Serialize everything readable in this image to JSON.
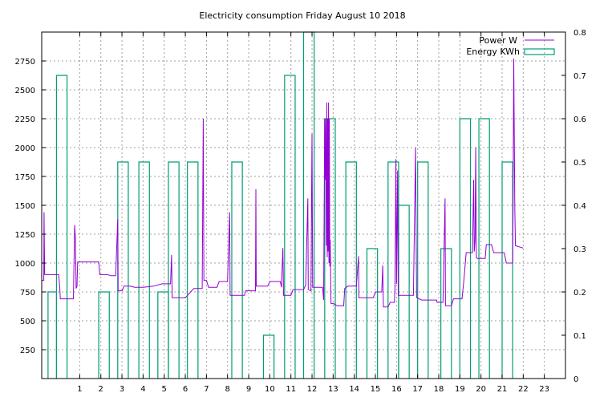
{
  "chart_data": {
    "type": "line",
    "title": "Electricity consumption Friday August 10 2018",
    "x_range": [
      -0.8,
      24
    ],
    "x_ticks": [
      1,
      2,
      3,
      4,
      5,
      6,
      7,
      8,
      9,
      10,
      11,
      12,
      13,
      14,
      15,
      16,
      17,
      18,
      19,
      20,
      21,
      22,
      23
    ],
    "y_left_range": [
      0,
      3000
    ],
    "y_left_ticks": [
      250,
      500,
      750,
      1000,
      1250,
      1500,
      1750,
      2000,
      2250,
      2500,
      2750
    ],
    "y_right_range": [
      0,
      0.8
    ],
    "y_right_ticks": [
      "0",
      "0.1",
      "0.2",
      "0.3",
      "0.4",
      "0.5",
      "0.6",
      "0.7",
      "0.8"
    ],
    "grid": true,
    "legend_position": "top-right",
    "colors": {
      "power": "#9400d3",
      "energy": "#009e73"
    },
    "series": [
      {
        "name": "Power W",
        "style": "line",
        "axis": "left",
        "points": [
          [
            -0.8,
            850
          ],
          [
            -0.7,
            850
          ],
          [
            -0.69,
            1440
          ],
          [
            -0.66,
            900
          ],
          [
            -0.4,
            900
          ],
          [
            0,
            900
          ],
          [
            0.05,
            800
          ],
          [
            0.08,
            690
          ],
          [
            0.4,
            690
          ],
          [
            0.7,
            690
          ],
          [
            0.74,
            1100
          ],
          [
            0.76,
            1330
          ],
          [
            0.8,
            1200
          ],
          [
            0.83,
            780
          ],
          [
            0.87,
            800
          ],
          [
            0.9,
            1010
          ],
          [
            1.1,
            1010
          ],
          [
            1.5,
            1010
          ],
          [
            1.9,
            1010
          ],
          [
            1.95,
            900
          ],
          [
            2.3,
            900
          ],
          [
            2.5,
            890
          ],
          [
            2.7,
            890
          ],
          [
            2.8,
            1380
          ],
          [
            2.82,
            760
          ],
          [
            3.0,
            760
          ],
          [
            3.1,
            800
          ],
          [
            3.4,
            800
          ],
          [
            3.6,
            790
          ],
          [
            4.0,
            790
          ],
          [
            4.5,
            800
          ],
          [
            4.9,
            820
          ],
          [
            5.3,
            820
          ],
          [
            5.35,
            1070
          ],
          [
            5.38,
            700
          ],
          [
            6.0,
            700
          ],
          [
            6.4,
            780
          ],
          [
            6.8,
            780
          ],
          [
            6.85,
            2250
          ],
          [
            6.88,
            850
          ],
          [
            7.0,
            850
          ],
          [
            7.1,
            790
          ],
          [
            7.5,
            790
          ],
          [
            7.6,
            840
          ],
          [
            8.0,
            840
          ],
          [
            8.1,
            1440
          ],
          [
            8.12,
            720
          ],
          [
            8.8,
            720
          ],
          [
            8.85,
            760
          ],
          [
            9.1,
            760
          ],
          [
            9.32,
            760
          ],
          [
            9.34,
            1640
          ],
          [
            9.36,
            800
          ],
          [
            9.9,
            800
          ],
          [
            10.0,
            840
          ],
          [
            10.5,
            840
          ],
          [
            10.55,
            790
          ],
          [
            10.62,
            1130
          ],
          [
            10.65,
            720
          ],
          [
            11.0,
            720
          ],
          [
            11.1,
            770
          ],
          [
            11.6,
            770
          ],
          [
            11.7,
            810
          ],
          [
            11.8,
            1560
          ],
          [
            11.82,
            770
          ],
          [
            11.95,
            760
          ],
          [
            12.0,
            2120
          ],
          [
            12.03,
            790
          ],
          [
            12.2,
            790
          ],
          [
            12.5,
            790
          ],
          [
            12.55,
            680
          ],
          [
            12.6,
            2250
          ],
          [
            12.62,
            1720
          ],
          [
            12.65,
            2250
          ],
          [
            12.68,
            1150
          ],
          [
            12.7,
            2390
          ],
          [
            12.72,
            1050
          ],
          [
            12.74,
            2250
          ],
          [
            12.76,
            1100
          ],
          [
            12.78,
            2390
          ],
          [
            12.8,
            1000
          ],
          [
            12.82,
            2250
          ],
          [
            12.84,
            970
          ],
          [
            12.86,
            1200
          ],
          [
            12.9,
            650
          ],
          [
            13.0,
            650
          ],
          [
            13.2,
            630
          ],
          [
            13.5,
            630
          ],
          [
            13.55,
            780
          ],
          [
            13.7,
            800
          ],
          [
            14.1,
            800
          ],
          [
            14.2,
            1060
          ],
          [
            14.22,
            700
          ],
          [
            14.6,
            700
          ],
          [
            14.9,
            700
          ],
          [
            15.0,
            750
          ],
          [
            15.3,
            750
          ],
          [
            15.35,
            980
          ],
          [
            15.38,
            620
          ],
          [
            15.6,
            620
          ],
          [
            15.7,
            660
          ],
          [
            15.9,
            660
          ],
          [
            15.93,
            810
          ],
          [
            15.97,
            1900
          ],
          [
            16.0,
            820
          ],
          [
            16.05,
            1800
          ],
          [
            16.08,
            720
          ],
          [
            16.6,
            720
          ],
          [
            16.8,
            720
          ],
          [
            16.9,
            2000
          ],
          [
            16.95,
            700
          ],
          [
            17.2,
            680
          ],
          [
            17.9,
            680
          ],
          [
            17.92,
            660
          ],
          [
            18.2,
            660
          ],
          [
            18.3,
            1560
          ],
          [
            18.32,
            630
          ],
          [
            18.6,
            630
          ],
          [
            18.7,
            690
          ],
          [
            19.1,
            690
          ],
          [
            19.2,
            870
          ],
          [
            19.3,
            1090
          ],
          [
            19.6,
            1090
          ],
          [
            19.65,
            1720
          ],
          [
            19.68,
            1100
          ],
          [
            19.72,
            1200
          ],
          [
            19.75,
            2000
          ],
          [
            19.78,
            1050
          ],
          [
            19.82,
            1040
          ],
          [
            20.2,
            1040
          ],
          [
            20.25,
            1160
          ],
          [
            20.5,
            1160
          ],
          [
            20.6,
            1090
          ],
          [
            21.1,
            1090
          ],
          [
            21.2,
            1000
          ],
          [
            21.5,
            1000
          ],
          [
            21.52,
            1500
          ],
          [
            21.55,
            2770
          ],
          [
            21.6,
            1500
          ],
          [
            21.63,
            1150
          ],
          [
            22.0,
            1130
          ]
        ]
      },
      {
        "name": "Energy KWh",
        "style": "steps",
        "axis": "right",
        "bars": [
          [
            -0.8,
            0.0
          ],
          [
            -0.5,
            0.2
          ],
          [
            -0.1,
            0.7
          ],
          [
            0.4,
            0.0
          ],
          [
            1.9,
            0.2
          ],
          [
            2.4,
            0.0
          ],
          [
            2.8,
            0.5
          ],
          [
            3.3,
            0.0
          ],
          [
            3.8,
            0.5
          ],
          [
            4.3,
            0.0
          ],
          [
            4.7,
            0.2
          ],
          [
            5.2,
            0.5
          ],
          [
            5.7,
            0.0
          ],
          [
            6.1,
            0.5
          ],
          [
            6.6,
            0.0
          ],
          [
            8.2,
            0.5
          ],
          [
            8.7,
            0.0
          ],
          [
            9.7,
            0.1
          ],
          [
            10.2,
            0.0
          ],
          [
            10.7,
            0.7
          ],
          [
            11.2,
            0.0
          ],
          [
            11.6,
            0.8
          ],
          [
            12.1,
            0.0
          ],
          [
            12.6,
            0.6
          ],
          [
            13.1,
            0.0
          ],
          [
            13.6,
            0.5
          ],
          [
            14.1,
            0.0
          ],
          [
            14.6,
            0.3
          ],
          [
            15.1,
            0.0
          ],
          [
            15.6,
            0.5
          ],
          [
            16.1,
            0.4
          ],
          [
            16.6,
            0.0
          ],
          [
            17.0,
            0.5
          ],
          [
            17.5,
            0.0
          ],
          [
            18.1,
            0.3
          ],
          [
            18.6,
            0.0
          ],
          [
            19.0,
            0.6
          ],
          [
            19.5,
            0.0
          ],
          [
            19.9,
            0.6
          ],
          [
            20.4,
            0.0
          ],
          [
            21.0,
            0.5
          ],
          [
            21.5,
            0.0
          ]
        ]
      }
    ]
  }
}
